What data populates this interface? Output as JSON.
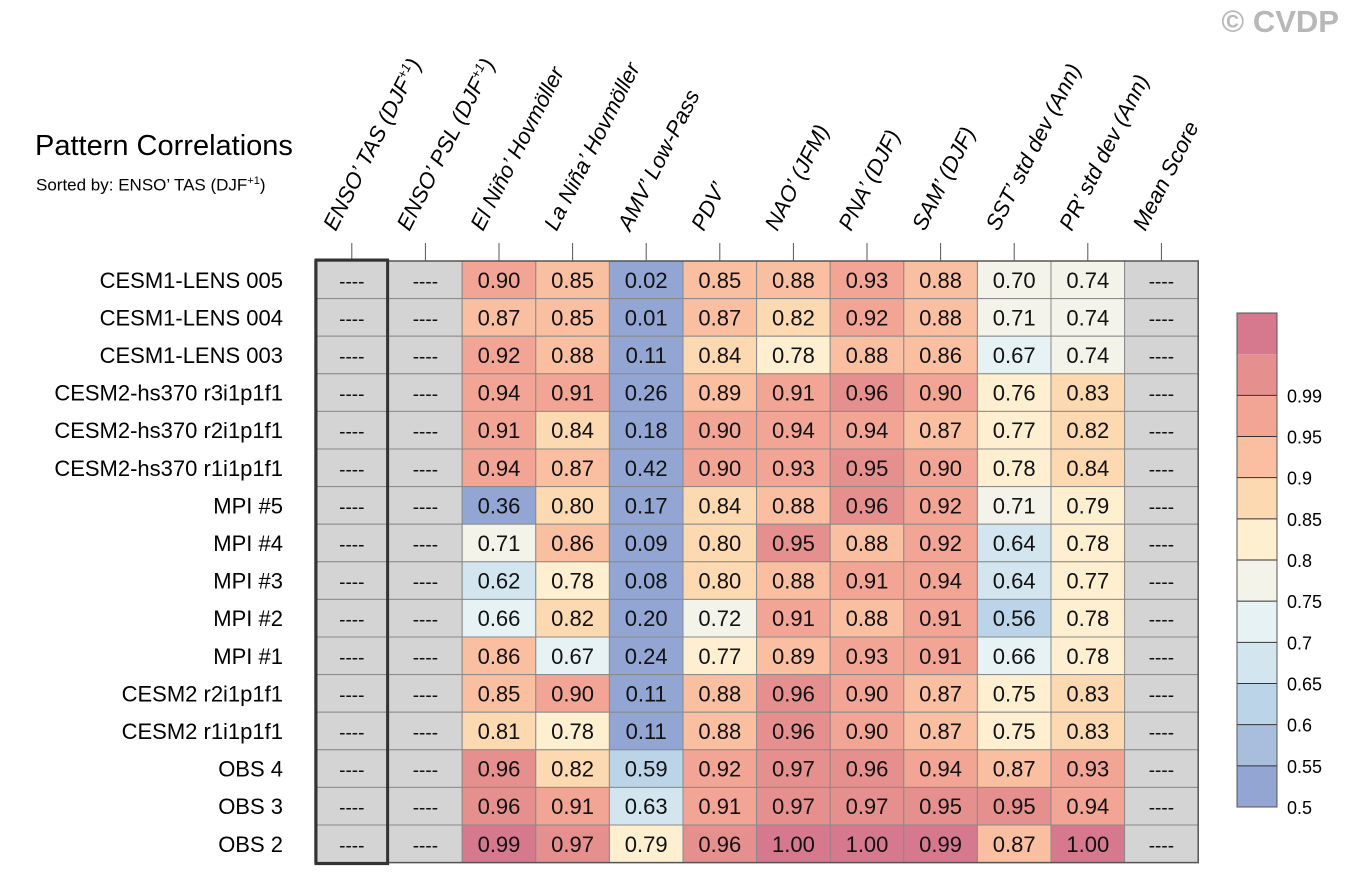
{
  "title": "Pattern Correlations",
  "subtitle": {
    "text": "Sorted by: ENSO’ TAS (DJF",
    "superscript": "+1",
    "close": ")"
  },
  "copyright": "© CVDP",
  "chart_data": {
    "type": "heatmap",
    "title": "Pattern Correlations",
    "columns": [
      {
        "base": "ENSO’ TAS (DJF",
        "sup": "+1",
        "tail": ")"
      },
      {
        "base": "ENSO’ PSL (DJF",
        "sup": "+1",
        "tail": ")"
      },
      {
        "base": "El Niño’ Hovmöller"
      },
      {
        "base": "La Niña’ Hovmöller"
      },
      {
        "base": "AMV’ Low-Pass"
      },
      {
        "base": "PDV’"
      },
      {
        "base": "NAO’ (JFM)"
      },
      {
        "base": "PNA’ (DJF)"
      },
      {
        "base": "SAM’ (DJF)"
      },
      {
        "base": "SST’ std dev (Ann)"
      },
      {
        "base": "PR’ std dev (Ann)"
      },
      {
        "base": "Mean Score"
      }
    ],
    "rows": [
      "CESM1-LENS 005",
      "CESM1-LENS 004",
      "CESM1-LENS 003",
      "CESM2-hs370 r3i1p1f1",
      "CESM2-hs370 r2i1p1f1",
      "CESM2-hs370 r1i1p1f1",
      "MPI #5",
      "MPI #4",
      "MPI #3",
      "MPI #2",
      "MPI #1",
      "CESM2 r2i1p1f1",
      "CESM2 r1i1p1f1",
      "OBS 4",
      "OBS 3",
      "OBS 2"
    ],
    "missing_label": "----",
    "values": [
      [
        null,
        null,
        "0.90",
        "0.85",
        "0.02",
        "0.85",
        "0.88",
        "0.93",
        "0.88",
        "0.70",
        "0.74",
        null
      ],
      [
        null,
        null,
        "0.87",
        "0.85",
        "0.01",
        "0.87",
        "0.82",
        "0.92",
        "0.88",
        "0.71",
        "0.74",
        null
      ],
      [
        null,
        null,
        "0.92",
        "0.88",
        "0.11",
        "0.84",
        "0.78",
        "0.88",
        "0.86",
        "0.67",
        "0.74",
        null
      ],
      [
        null,
        null,
        "0.94",
        "0.91",
        "0.26",
        "0.89",
        "0.91",
        "0.96",
        "0.90",
        "0.76",
        "0.83",
        null
      ],
      [
        null,
        null,
        "0.91",
        "0.84",
        "0.18",
        "0.90",
        "0.94",
        "0.94",
        "0.87",
        "0.77",
        "0.82",
        null
      ],
      [
        null,
        null,
        "0.94",
        "0.87",
        "0.42",
        "0.90",
        "0.93",
        "0.95",
        "0.90",
        "0.78",
        "0.84",
        null
      ],
      [
        null,
        null,
        "0.36",
        "0.80",
        "0.17",
        "0.84",
        "0.88",
        "0.96",
        "0.92",
        "0.71",
        "0.79",
        null
      ],
      [
        null,
        null,
        "0.71",
        "0.86",
        "0.09",
        "0.80",
        "0.95",
        "0.88",
        "0.92",
        "0.64",
        "0.78",
        null
      ],
      [
        null,
        null,
        "0.62",
        "0.78",
        "0.08",
        "0.80",
        "0.88",
        "0.91",
        "0.94",
        "0.64",
        "0.77",
        null
      ],
      [
        null,
        null,
        "0.66",
        "0.82",
        "0.20",
        "0.72",
        "0.91",
        "0.88",
        "0.91",
        "0.56",
        "0.78",
        null
      ],
      [
        null,
        null,
        "0.86",
        "0.67",
        "0.24",
        "0.77",
        "0.89",
        "0.93",
        "0.91",
        "0.66",
        "0.78",
        null
      ],
      [
        null,
        null,
        "0.85",
        "0.90",
        "0.11",
        "0.88",
        "0.96",
        "0.90",
        "0.87",
        "0.75",
        "0.83",
        null
      ],
      [
        null,
        null,
        "0.81",
        "0.78",
        "0.11",
        "0.88",
        "0.96",
        "0.90",
        "0.87",
        "0.75",
        "0.83",
        null
      ],
      [
        null,
        null,
        "0.96",
        "0.82",
        "0.59",
        "0.92",
        "0.97",
        "0.96",
        "0.94",
        "0.87",
        "0.93",
        null
      ],
      [
        null,
        null,
        "0.96",
        "0.91",
        "0.63",
        "0.91",
        "0.97",
        "0.97",
        "0.95",
        "0.95",
        "0.94",
        null
      ],
      [
        null,
        null,
        "0.99",
        "0.97",
        "0.79",
        "0.96",
        "1.00",
        "1.00",
        "0.99",
        "0.87",
        "1.00",
        null
      ]
    ],
    "sorted_column": 0,
    "colorbar": {
      "levels": [
        "0.5",
        "0.55",
        "0.6",
        "0.65",
        "0.7",
        "0.75",
        "0.8",
        "0.85",
        "0.9",
        "0.95",
        "0.99"
      ],
      "colors": [
        "#93a5d3",
        "#a9bedd",
        "#bcd4e7",
        "#d3e6f0",
        "#e6f2f4",
        "#f3f3e9",
        "#fdefcf",
        "#fcd9b0",
        "#f9bfa0",
        "#f2a595",
        "#e58f8f",
        "#d6798f"
      ]
    },
    "missing_color": "#d4d4d4",
    "grid_color": "#8a8a8a"
  }
}
